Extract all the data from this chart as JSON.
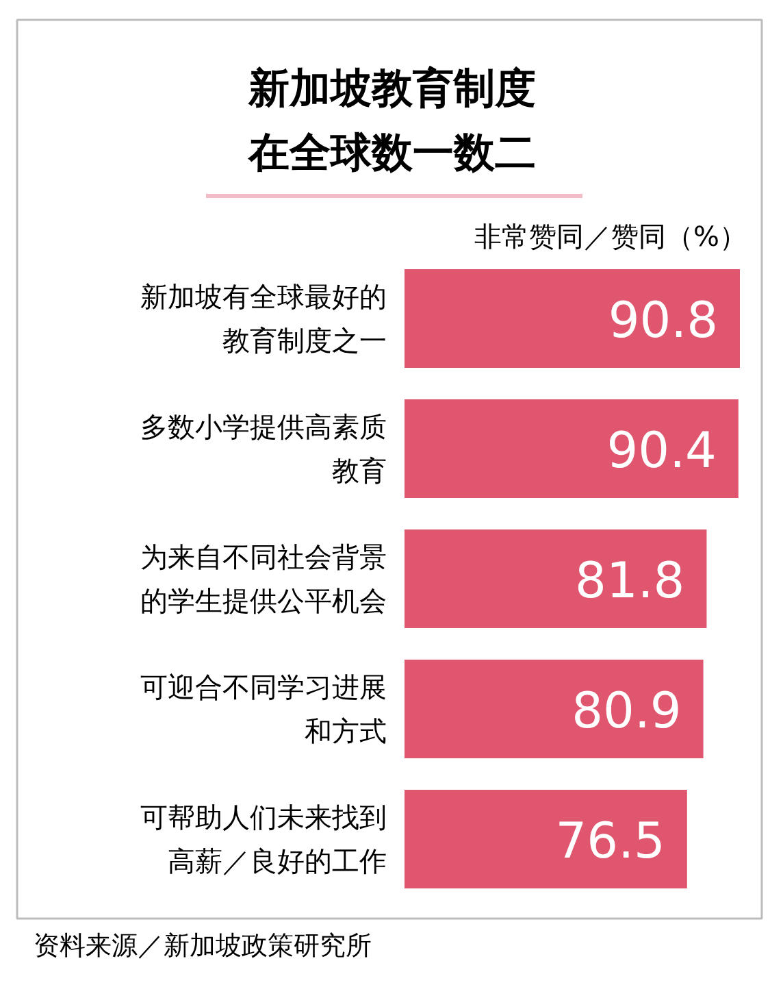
{
  "chart_data": {
    "type": "bar",
    "orientation": "horizontal",
    "title": "新加坡教育制度在全球数一数二",
    "subtitle": "非常赞同／赞同（%）",
    "annotations": [
      "资料来源／新加坡政策研究所"
    ],
    "categories": [
      "新加坡有全球最好的教育制度之一",
      "多数小学提供高素质教育",
      "为来自不同社会背景的学生提供公平机会",
      "可迎合不同学习进展和方式",
      "可帮助人们未来找到高薪／良好的工作"
    ],
    "values": [
      90.8,
      90.4,
      81.8,
      80.9,
      76.5
    ],
    "color": "#e0566e",
    "data_labels": true,
    "tick_labels": false,
    "grid": false
  }
}
